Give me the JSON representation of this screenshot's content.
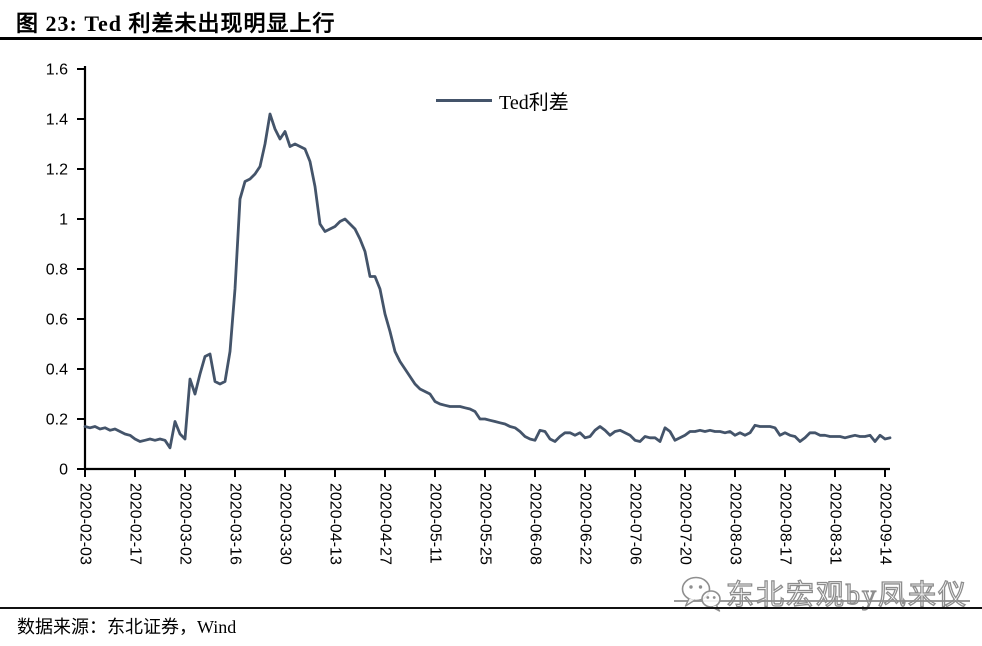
{
  "figure": {
    "title": "图 23: Ted 利差未出现明显上行",
    "source_note": "数据来源：东北证券，Wind",
    "watermark_text": "东北宏观by凤来仪",
    "watermark_icon": "wechat-icon"
  },
  "chart_data": {
    "type": "line",
    "title": "图 23: Ted 利差未出现明显上行",
    "legend": {
      "label": "Ted利差",
      "position": "top-center"
    },
    "axis_color": "#000000",
    "grid": false,
    "xlabel": "",
    "ylabel": "",
    "ylim": [
      0,
      1.6
    ],
    "y_ticks": [
      0,
      0.2,
      0.4,
      0.6,
      0.8,
      1.0,
      1.2,
      1.4,
      1.6
    ],
    "y_tick_labels": [
      "0",
      "0.2",
      "0.4",
      "0.6",
      "0.8",
      "1",
      "1.2",
      "1.4",
      "1.6"
    ],
    "x_tick_labels": [
      "2020-02-03",
      "2020-02-17",
      "2020-03-02",
      "2020-03-16",
      "2020-03-30",
      "2020-04-13",
      "2020-04-27",
      "2020-05-11",
      "2020-05-25",
      "2020-06-08",
      "2020-06-22",
      "2020-07-06",
      "2020-07-20",
      "2020-08-03",
      "2020-08-17",
      "2020-08-31",
      "2020-09-14"
    ],
    "x_frequency": "weekday-daily",
    "points_per_tick": 10,
    "series": [
      {
        "name": "Ted利差",
        "color": "#44546A",
        "start_date": "2020-02-03",
        "values": [
          0.17,
          0.165,
          0.17,
          0.16,
          0.165,
          0.155,
          0.16,
          0.15,
          0.14,
          0.135,
          0.12,
          0.11,
          0.115,
          0.12,
          0.115,
          0.12,
          0.115,
          0.085,
          0.19,
          0.14,
          0.12,
          0.36,
          0.3,
          0.38,
          0.45,
          0.46,
          0.35,
          0.34,
          0.35,
          0.47,
          0.72,
          1.08,
          1.15,
          1.16,
          1.18,
          1.21,
          1.3,
          1.42,
          1.36,
          1.32,
          1.35,
          1.29,
          1.3,
          1.29,
          1.28,
          1.23,
          1.13,
          0.98,
          0.95,
          0.96,
          0.97,
          0.99,
          1.0,
          0.98,
          0.96,
          0.92,
          0.87,
          0.77,
          0.77,
          0.72,
          0.62,
          0.55,
          0.47,
          0.43,
          0.4,
          0.37,
          0.34,
          0.32,
          0.31,
          0.3,
          0.27,
          0.26,
          0.255,
          0.25,
          0.25,
          0.25,
          0.245,
          0.24,
          0.23,
          0.2,
          0.2,
          0.195,
          0.19,
          0.185,
          0.18,
          0.17,
          0.165,
          0.15,
          0.13,
          0.12,
          0.115,
          0.155,
          0.15,
          0.12,
          0.11,
          0.13,
          0.145,
          0.145,
          0.135,
          0.145,
          0.125,
          0.13,
          0.155,
          0.17,
          0.155,
          0.135,
          0.15,
          0.155,
          0.145,
          0.135,
          0.115,
          0.11,
          0.13,
          0.125,
          0.125,
          0.11,
          0.165,
          0.15,
          0.115,
          0.125,
          0.135,
          0.15,
          0.15,
          0.155,
          0.15,
          0.155,
          0.15,
          0.15,
          0.145,
          0.15,
          0.135,
          0.145,
          0.135,
          0.145,
          0.175,
          0.17,
          0.17,
          0.17,
          0.165,
          0.135,
          0.145,
          0.135,
          0.13,
          0.11,
          0.125,
          0.145,
          0.145,
          0.135,
          0.135,
          0.13,
          0.13,
          0.13,
          0.125,
          0.13,
          0.135,
          0.13,
          0.13,
          0.135,
          0.11,
          0.135,
          0.12,
          0.125
        ]
      }
    ]
  }
}
